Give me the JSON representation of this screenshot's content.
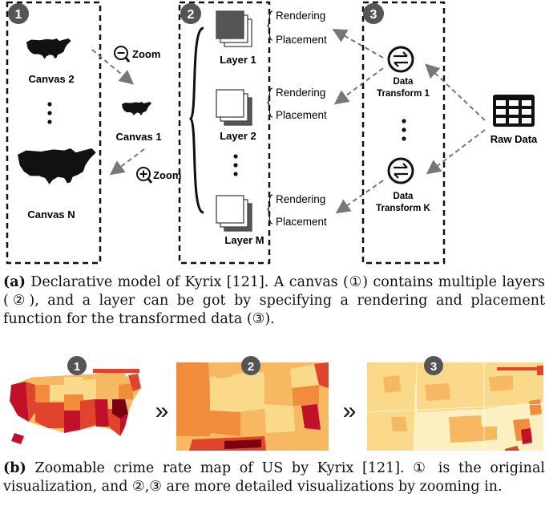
{
  "fig_a": {
    "badges": [
      "1",
      "2",
      "3"
    ],
    "zoom_out_label": "Zoom",
    "zoom_in_label": "Zoom",
    "canvas2_label": "Canvas 2",
    "canvas1_label": "Canvas 1",
    "canvasN_label": "Canvas N",
    "layer1_label": "Layer 1",
    "layer2_label": "Layer 2",
    "layerM_label": "Layer M",
    "rendering_label": "Rendering",
    "placement_label": "Placement",
    "transform1_line1": "Data",
    "transform1_line2": "Transform 1",
    "transformK_line1": "Data",
    "transformK_line2": "Transform K",
    "raw_data_label": "Raw Data",
    "colors": {
      "dark_layer": "#555555",
      "arrow": "#777777"
    }
  },
  "caption_a": {
    "tag": "(a)",
    "text": " Declarative model of Kyrix [121]. A canvas (①) contains multiple layers (②), and a layer can be got by specifying a rendering and placement function for the transformed data (③)."
  },
  "fig_b": {
    "badges": [
      "1",
      "2",
      "3"
    ],
    "separator": "»",
    "map_colors": [
      "#7a0010",
      "#c0102a",
      "#e0432e",
      "#f08c3c",
      "#f6b860",
      "#fbd98a",
      "#fdf0c0"
    ]
  },
  "caption_b": {
    "tag": "(b)",
    "text": " Zoomable crime rate map of US by Kyrix [121]. ① is the original visualization, and ②,③ are more detailed visualizations by zooming in."
  }
}
